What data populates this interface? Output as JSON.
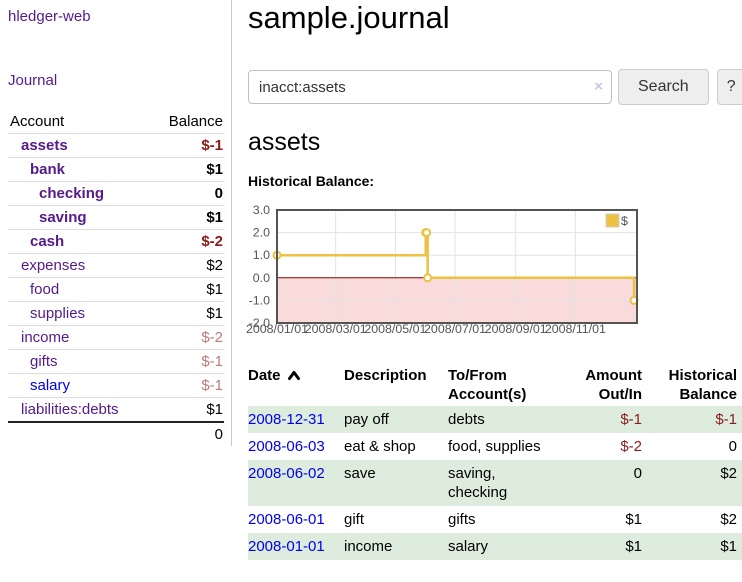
{
  "colors": {
    "link_visited_purple": "#551a8b",
    "link_blue": "#0000ee",
    "negative_dark": "#8b1a1a",
    "negative_soft": "#bd7b7b",
    "row_stripe_green": "#ddecdd",
    "chart_line_gold": "#EDC240",
    "chart_negative_pink": "#f9dbdb",
    "chart_zero_line": "#800000"
  },
  "sidebar": {
    "app_title": "hledger-web",
    "journal_label": "Journal",
    "accounts_table": {
      "headers": {
        "account": "Account",
        "balance": "Balance"
      },
      "rows": [
        {
          "account": "assets",
          "balance": "$-1",
          "depth": 1,
          "bold": true,
          "link": "visited"
        },
        {
          "account": "bank",
          "balance": "$1",
          "depth": 2,
          "bold": true,
          "link": "visited"
        },
        {
          "account": "checking",
          "balance": "0",
          "depth": 3,
          "bold": true,
          "link": "visited"
        },
        {
          "account": "saving",
          "balance": "$1",
          "depth": 3,
          "bold": true,
          "link": "visited"
        },
        {
          "account": "cash",
          "balance": "$-2",
          "depth": 2,
          "bold": true,
          "link": "visited"
        },
        {
          "account": "expenses",
          "balance": "$2",
          "depth": 1,
          "bold": false,
          "link": "visited"
        },
        {
          "account": "food",
          "balance": "$1",
          "depth": 2,
          "bold": false,
          "link": "visited"
        },
        {
          "account": "supplies",
          "balance": "$1",
          "depth": 2,
          "bold": false,
          "link": "visited"
        },
        {
          "account": "income",
          "balance": "$-2",
          "depth": 1,
          "bold": false,
          "link": "visited"
        },
        {
          "account": "gifts",
          "balance": "$-1",
          "depth": 2,
          "bold": false,
          "link": "visited"
        },
        {
          "account": "salary",
          "balance": "$-1",
          "depth": 2,
          "bold": false,
          "link": "unvisited"
        },
        {
          "account": "liabilities:debts",
          "balance": "$1",
          "depth": 1,
          "bold": false,
          "link": "visited"
        }
      ],
      "total": "0"
    }
  },
  "main": {
    "title": "sample.journal",
    "search": {
      "value": "inacct:assets",
      "clear_icon": "×",
      "button_label": "Search",
      "help_label": "?"
    },
    "account_heading": "assets",
    "chart_label": "Historical Balance:"
  },
  "chart_data": {
    "type": "line",
    "step": true,
    "title": "Historical Balance",
    "series": [
      {
        "name": "$",
        "color": "#EDC240",
        "points": [
          {
            "date": "2008-01-01",
            "day": 0,
            "value": 1
          },
          {
            "date": "2008-06-01",
            "day": 152,
            "value": 2
          },
          {
            "date": "2008-06-02",
            "day": 153,
            "value": 2
          },
          {
            "date": "2008-06-03",
            "day": 154,
            "value": 0
          },
          {
            "date": "2008-12-31",
            "day": 365,
            "value": -1
          }
        ]
      }
    ],
    "x_ticks": [
      {
        "label": "2008/01/01",
        "day": 0
      },
      {
        "label": "2008/03/01",
        "day": 60
      },
      {
        "label": "2008/05/01",
        "day": 121
      },
      {
        "label": "2008/07/01",
        "day": 182
      },
      {
        "label": "2008/09/01",
        "day": 244
      },
      {
        "label": "2008/11/01",
        "day": 305
      }
    ],
    "y_ticks": [
      {
        "label": "3.0",
        "value": 3
      },
      {
        "label": "2.0",
        "value": 2
      },
      {
        "label": "1.0",
        "value": 1
      },
      {
        "label": "0.0",
        "value": 0
      },
      {
        "label": "-1.0",
        "value": -1
      },
      {
        "label": "-2.0",
        "value": -2
      }
    ],
    "xlim_days": [
      0,
      368
    ],
    "ylim": [
      -2,
      3
    ],
    "grid": true,
    "legend_position": "top-right",
    "negative_region_color": "#f9dbdb",
    "zero_line_color": "#800000",
    "grid_color": "#e3e3e3",
    "border_color": "#545454"
  },
  "register": {
    "headers": {
      "date": "Date",
      "description": "Description",
      "accounts": "To/From Account(s)",
      "amount": "Amount Out/In",
      "balance": "Historical Balance"
    },
    "rows": [
      {
        "date": "2008-12-31",
        "description": "pay off",
        "accounts": "debts",
        "amount": "$-1",
        "balance": "$-1"
      },
      {
        "date": "2008-06-03",
        "description": "eat & shop",
        "accounts": "food, supplies",
        "amount": "$-2",
        "balance": "0"
      },
      {
        "date": "2008-06-02",
        "description": "save",
        "accounts": "saving, checking",
        "amount": "0",
        "balance": "$2"
      },
      {
        "date": "2008-06-01",
        "description": "gift",
        "accounts": "gifts",
        "amount": "$1",
        "balance": "$2"
      },
      {
        "date": "2008-01-01",
        "description": "income",
        "accounts": "salary",
        "amount": "$1",
        "balance": "$1"
      }
    ]
  }
}
